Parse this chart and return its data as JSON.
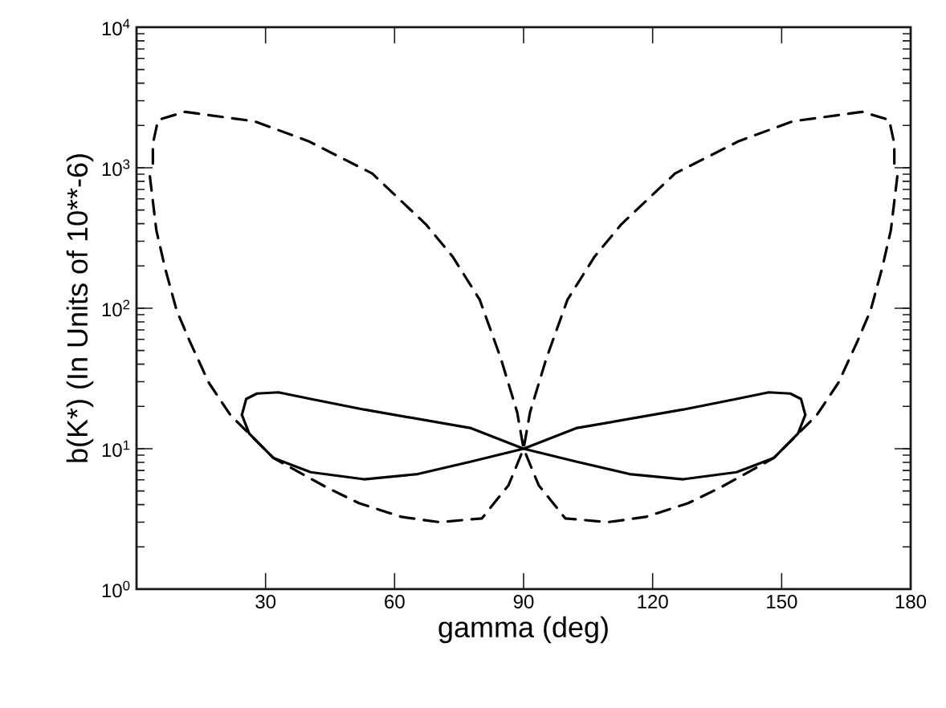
{
  "chart_data": {
    "type": "line",
    "xlabel": "gamma (deg)",
    "ylabel": "b(K*) (In Units of 10**-6)",
    "xlim": [
      0,
      180
    ],
    "xticks": [
      30,
      60,
      90,
      120,
      150,
      180
    ],
    "ylim": [
      1,
      10000
    ],
    "log": "y",
    "yticks": [
      {
        "value": 1,
        "label": "10$^{0}$"
      },
      {
        "value": 10,
        "label": "10$^{1}$"
      },
      {
        "value": 100,
        "label": "10$^{2}$"
      },
      {
        "value": 1000,
        "label": "10$^{3}$"
      },
      {
        "value": 10000,
        "label": "10$^{4}$"
      }
    ],
    "grid": false,
    "marker": "none",
    "series": [
      {
        "color": "#000000",
        "line_style": "solid",
        "x": [
          24.5,
          25.5,
          28,
          33,
          40.5,
          52.9,
          77.8,
          90,
          102.2,
          114.6,
          127.1,
          139.5,
          148.2,
          153.8,
          155.5
        ],
        "values": [
          17.4,
          22.6,
          24.7,
          25.2,
          22.6,
          19,
          14,
          10,
          8.1,
          6.6,
          6.06,
          6.8,
          8.6,
          12.8,
          17.4
        ]
      },
      {
        "color": "#000000",
        "line_style": "solid",
        "x": [
          24.5,
          26.2,
          31.8,
          40.5,
          52.9,
          65.4,
          77.8,
          90,
          102.2,
          127.1,
          139.5,
          147,
          152,
          154.5,
          155.5
        ],
        "values": [
          17.4,
          12.8,
          8.6,
          6.8,
          6.06,
          6.6,
          8.1,
          10,
          14,
          19,
          22.6,
          25.2,
          24.7,
          22.6,
          17.4
        ]
      },
      {
        "color": "#000000",
        "line_style": "dashed",
        "x": [
          3.1,
          4.6,
          6.6,
          9.3,
          12.5,
          16.8,
          21.8,
          31.8,
          44.2,
          51.7,
          61.6,
          70.4,
          80.3,
          86.5,
          90,
          91.5,
          95.3,
          100.2,
          106.5,
          112.7,
          125.2,
          140.1,
          152.6,
          168.7,
          175,
          176.2,
          176.2
        ],
        "values": [
          870,
          360,
          195,
          97,
          57,
          29.5,
          17.4,
          8.6,
          5.3,
          4.1,
          3.27,
          3.0,
          3.19,
          5.5,
          10,
          18.2,
          44,
          115,
          233,
          395,
          910,
          1550,
          2140,
          2500,
          2190,
          1480,
          950
        ]
      },
      {
        "color": "#000000",
        "line_style": "dashed",
        "x": [
          176.9,
          175.4,
          173.4,
          170.7,
          167.5,
          163.2,
          158.2,
          148.2,
          135.8,
          128.3,
          118.4,
          109.6,
          99.7,
          93.5,
          90,
          88.5,
          84.7,
          79.8,
          73.5,
          67.3,
          54.8,
          39.9,
          27.4,
          11.3,
          5,
          3.8,
          3.8
        ],
        "values": [
          870,
          360,
          195,
          97,
          57,
          29.5,
          17.4,
          8.6,
          5.3,
          4.1,
          3.27,
          3.0,
          3.19,
          5.5,
          10,
          18.2,
          44,
          115,
          233,
          395,
          910,
          1550,
          2140,
          2500,
          2190,
          1480,
          950
        ]
      }
    ]
  }
}
